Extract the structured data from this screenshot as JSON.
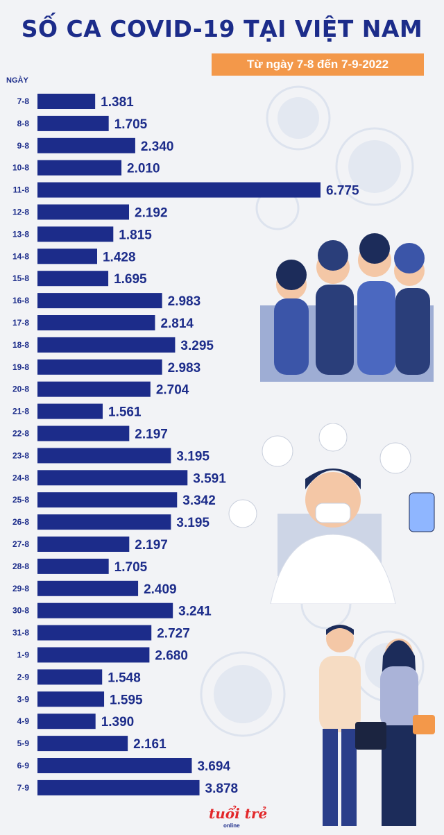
{
  "logo": {
    "main": "tuổi trẻ",
    "sub": "online"
  },
  "colors": {
    "bar": "#1c2c8a",
    "label_bg": "#f3984a",
    "background": "#f2f3f6"
  },
  "chart_data": {
    "type": "bar",
    "orientation": "horizontal",
    "title": "SỐ CA COVID-19 TẠI VIỆT NAM",
    "subtitle": "Từ ngày 7-8 đến 7-9-2022",
    "ylabel": "NGÀY",
    "xlabel": "",
    "grid": false,
    "categories": [
      "7-8",
      "8-8",
      "9-8",
      "10-8",
      "11-8",
      "12-8",
      "13-8",
      "14-8",
      "15-8",
      "16-8",
      "17-8",
      "18-8",
      "19-8",
      "20-8",
      "21-8",
      "22-8",
      "23-8",
      "24-8",
      "25-8",
      "26-8",
      "27-8",
      "28-8",
      "29-8",
      "30-8",
      "31-8",
      "1-9",
      "2-9",
      "3-9",
      "4-9",
      "5-9",
      "6-9",
      "7-9"
    ],
    "values": [
      1381,
      1705,
      2340,
      2010,
      6775,
      2192,
      1815,
      1428,
      1695,
      2983,
      2814,
      3295,
      2983,
      2704,
      1561,
      2197,
      3195,
      3591,
      3342,
      3195,
      2197,
      1705,
      2409,
      3241,
      2727,
      2680,
      1548,
      1595,
      1390,
      2161,
      3694,
      3878
    ],
    "value_labels": [
      "1.381",
      "1.705",
      "2.340",
      "2.010",
      "6.775",
      "2.192",
      "1.815",
      "1.428",
      "1.695",
      "2.983",
      "2.814",
      "3.295",
      "2.983",
      "2.704",
      "1.561",
      "2.197",
      "3.195",
      "3.591",
      "3.342",
      "3.195",
      "2.197",
      "1.705",
      "2.409",
      "3.241",
      "2.727",
      "2.680",
      "1.548",
      "1.595",
      "1.390",
      "2.161",
      "3.694",
      "3.878"
    ]
  }
}
